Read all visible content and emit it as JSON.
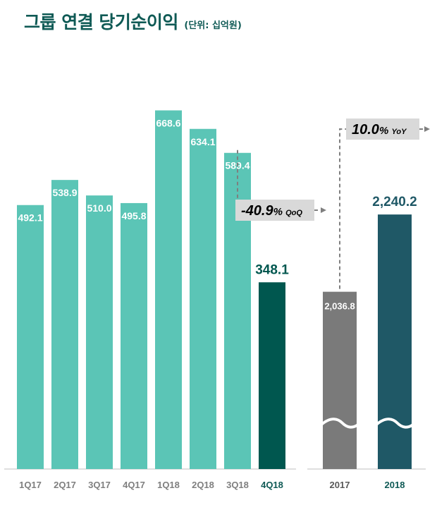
{
  "title": "그룹 연결 당기순이익",
  "unit": "(단위: 십억원)",
  "chart_data": [
    {
      "type": "bar",
      "categories": [
        "1Q17",
        "2Q17",
        "3Q17",
        "4Q17",
        "1Q18",
        "2Q18",
        "3Q18",
        "4Q18"
      ],
      "values": [
        492.1,
        538.9,
        510.0,
        495.8,
        668.6,
        634.1,
        589.4,
        348.1
      ],
      "labels": [
        "492.1",
        "538.9",
        "510.0",
        "495.8",
        "668.6",
        "634.1",
        "589.4",
        "348.1"
      ],
      "highlight": "4Q18",
      "ylim": [
        0,
        760
      ],
      "colors": {
        "bar": "#5bc5b6",
        "highlight": "#00574f",
        "highlight_label": "#00574f"
      },
      "annotation": {
        "value": "-40.9",
        "suffix": "% ",
        "tag": "QoQ",
        "from": "3Q18",
        "to": "4Q18"
      }
    },
    {
      "type": "bar",
      "categories": [
        "2017",
        "2018"
      ],
      "values": [
        2036.8,
        2240.2
      ],
      "labels": [
        "2,036.8",
        "2,240.2"
      ],
      "axis_break": true,
      "colors": [
        "#7a7a7a",
        "#1f5866"
      ],
      "label_colors": [
        "#ffffff",
        "#1f5866"
      ],
      "annotation": {
        "value": "10.0",
        "suffix": "% ",
        "tag": "YoY",
        "from": "2017",
        "to": "2018"
      }
    }
  ]
}
